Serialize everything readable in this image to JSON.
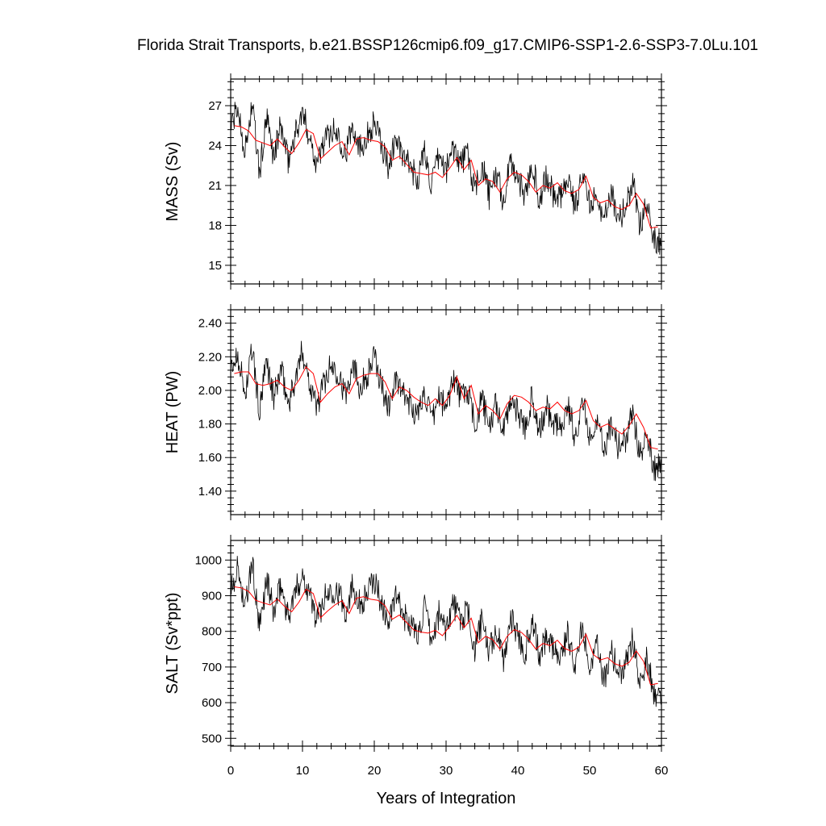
{
  "title": "Florida Strait Transports, b.e21.BSSP126cmip6.f09_g17.CMIP6-SSP1-2.6-SSP3-7.0Lu.101",
  "xlabel": "Years of Integration",
  "colors": {
    "raw": "#000000",
    "smooth": "#ff0000",
    "axis": "#000000"
  },
  "chart_data": [
    {
      "type": "line",
      "ylabel": "MASS (Sv)",
      "xlim": [
        0,
        60
      ],
      "ylim": [
        13.6,
        29
      ],
      "xticks": [
        0,
        10,
        20,
        30,
        40,
        50,
        60
      ],
      "yticks": [
        15,
        18,
        21,
        24,
        27
      ],
      "ytick_labels": [
        "15",
        "18",
        "21",
        "24",
        "27"
      ],
      "grid": false,
      "series": [
        {
          "style": "monthly-raw",
          "x": [
            0,
            1,
            2,
            3,
            4,
            5,
            6,
            7,
            8,
            9,
            10,
            11,
            12,
            13,
            14,
            15,
            16,
            17,
            18,
            19,
            20,
            21,
            22,
            23,
            24,
            25,
            26,
            27,
            28,
            29,
            30,
            31,
            32,
            33,
            34,
            35,
            36,
            37,
            38,
            39,
            40,
            41,
            42,
            43,
            44,
            45,
            46,
            47,
            48,
            49,
            50,
            51,
            52,
            53,
            54,
            55,
            56,
            57,
            58,
            59,
            60
          ],
          "values": [
            25.4,
            26.8,
            23.5,
            27.2,
            21.8,
            26.0,
            23.2,
            25.5,
            22.8,
            24.9,
            26.4,
            24.7,
            22.6,
            24.3,
            25.1,
            24.9,
            23.4,
            25.6,
            23.9,
            24.7,
            25.8,
            24.0,
            22.4,
            24.6,
            23.0,
            22.5,
            21.4,
            23.6,
            20.9,
            23.2,
            22.1,
            24.0,
            22.7,
            23.4,
            20.4,
            22.6,
            20.2,
            21.9,
            19.7,
            22.9,
            21.6,
            20.2,
            22.8,
            19.8,
            21.6,
            20.3,
            20.1,
            21.7,
            19.3,
            22.3,
            19.4,
            20.8,
            18.1,
            20.5,
            18.6,
            19.2,
            21.4,
            18.0,
            19.9,
            17.0,
            16.7
          ]
        },
        {
          "style": "annual-mean",
          "x": [
            0,
            1,
            2,
            3,
            4,
            5,
            6,
            7,
            8,
            9,
            10,
            11,
            12,
            13,
            14,
            15,
            16,
            17,
            18,
            19,
            20,
            21,
            22,
            23,
            24,
            25,
            26,
            27,
            28,
            29,
            30,
            31,
            32,
            33,
            34,
            35,
            36,
            37,
            38,
            39,
            40,
            41,
            42,
            43,
            44,
            45,
            46,
            47,
            48,
            49,
            50,
            51,
            52,
            53,
            54,
            55,
            56,
            57,
            58,
            59
          ],
          "values": [
            25.5,
            25.4,
            25.1,
            24.4,
            24.2,
            24.0,
            24.5,
            23.9,
            23.4,
            24.2,
            25.2,
            24.9,
            23.0,
            23.5,
            24.0,
            24.3,
            23.3,
            24.5,
            24.6,
            24.4,
            24.3,
            23.9,
            22.9,
            23.2,
            22.6,
            22.0,
            21.9,
            21.8,
            22.0,
            21.6,
            22.3,
            23.1,
            22.2,
            22.9,
            21.0,
            21.5,
            21.3,
            20.5,
            21.5,
            22.0,
            21.8,
            21.3,
            20.5,
            21.0,
            20.8,
            21.2,
            20.6,
            20.4,
            20.7,
            21.7,
            20.1,
            19.7,
            19.9,
            19.4,
            19.2,
            19.5,
            20.4,
            19.6,
            17.8,
            17.9
          ]
        }
      ]
    },
    {
      "type": "line",
      "ylabel": "HEAT (PW)",
      "xlim": [
        0,
        60
      ],
      "ylim": [
        1.26,
        2.48
      ],
      "xticks": [
        0,
        10,
        20,
        30,
        40,
        50,
        60
      ],
      "yticks": [
        1.4,
        1.6,
        1.8,
        2.0,
        2.2,
        2.4
      ],
      "ytick_labels": [
        "1.40",
        "1.60",
        "1.80",
        "2.00",
        "2.20",
        "2.40"
      ],
      "grid": false,
      "series": [
        {
          "style": "monthly-raw",
          "x": [
            0,
            1,
            2,
            3,
            4,
            5,
            6,
            7,
            8,
            9,
            10,
            11,
            12,
            13,
            14,
            15,
            16,
            17,
            18,
            19,
            20,
            21,
            22,
            23,
            24,
            25,
            26,
            27,
            28,
            29,
            30,
            31,
            32,
            33,
            34,
            35,
            36,
            37,
            38,
            39,
            40,
            41,
            42,
            43,
            44,
            45,
            46,
            47,
            48,
            49,
            50,
            51,
            52,
            53,
            54,
            55,
            56,
            57,
            58,
            59,
            60
          ],
          "values": [
            2.12,
            2.22,
            1.97,
            2.25,
            1.86,
            2.18,
            1.95,
            2.13,
            1.92,
            2.06,
            2.24,
            2.05,
            1.9,
            2.05,
            2.15,
            2.11,
            1.96,
            2.18,
            2.02,
            2.09,
            2.2,
            2.03,
            1.9,
            2.06,
            1.97,
            1.93,
            1.84,
            2.0,
            1.8,
            1.97,
            1.89,
            2.09,
            1.96,
            2.0,
            1.79,
            1.95,
            1.77,
            1.92,
            1.75,
            1.96,
            1.87,
            1.78,
            1.97,
            1.74,
            1.9,
            1.8,
            1.78,
            1.91,
            1.72,
            1.94,
            1.73,
            1.84,
            1.62,
            1.82,
            1.66,
            1.71,
            1.87,
            1.62,
            1.76,
            1.53,
            1.58
          ]
        },
        {
          "style": "annual-mean",
          "x": [
            0,
            1,
            2,
            3,
            4,
            5,
            6,
            7,
            8,
            9,
            10,
            11,
            12,
            13,
            14,
            15,
            16,
            17,
            18,
            19,
            20,
            21,
            22,
            23,
            24,
            25,
            26,
            27,
            28,
            29,
            30,
            31,
            32,
            33,
            34,
            35,
            36,
            37,
            38,
            39,
            40,
            41,
            42,
            43,
            44,
            45,
            46,
            47,
            48,
            49,
            50,
            51,
            52,
            53,
            54,
            55,
            56,
            57,
            58,
            59
          ],
          "values": [
            2.1,
            2.11,
            2.11,
            2.04,
            2.03,
            2.04,
            2.06,
            2.02,
            2.0,
            2.06,
            2.14,
            2.1,
            1.93,
            1.98,
            2.02,
            2.04,
            1.98,
            2.07,
            2.09,
            2.1,
            2.1,
            2.05,
            1.95,
            2.02,
            2.0,
            1.96,
            1.93,
            1.91,
            1.95,
            1.91,
            1.97,
            2.08,
            1.95,
            2.03,
            1.86,
            1.91,
            1.88,
            1.83,
            1.92,
            1.97,
            1.96,
            1.93,
            1.88,
            1.9,
            1.89,
            1.93,
            1.88,
            1.86,
            1.88,
            1.94,
            1.82,
            1.78,
            1.8,
            1.77,
            1.74,
            1.79,
            1.86,
            1.78,
            1.66,
            1.65
          ]
        }
      ]
    },
    {
      "type": "line",
      "ylabel": "SALT (Sv*ppt)",
      "xlim": [
        0,
        60
      ],
      "ylim": [
        478,
        1055
      ],
      "xticks": [
        0,
        10,
        20,
        30,
        40,
        50,
        60
      ],
      "yticks": [
        500,
        600,
        700,
        800,
        900,
        1000
      ],
      "ytick_labels": [
        "500",
        "600",
        "700",
        "800",
        "900",
        "1000"
      ],
      "grid": false,
      "series": [
        {
          "style": "monthly-raw",
          "x": [
            0,
            1,
            2,
            3,
            4,
            5,
            6,
            7,
            8,
            9,
            10,
            11,
            12,
            13,
            14,
            15,
            16,
            17,
            18,
            19,
            20,
            21,
            22,
            23,
            24,
            25,
            26,
            27,
            28,
            29,
            30,
            31,
            32,
            33,
            34,
            35,
            36,
            37,
            38,
            39,
            40,
            41,
            42,
            43,
            44,
            45,
            46,
            47,
            48,
            49,
            50,
            51,
            52,
            53,
            54,
            55,
            56,
            57,
            58,
            59,
            60
          ],
          "values": [
            920,
            980,
            860,
            995,
            800,
            950,
            850,
            930,
            840,
            910,
            960,
            905,
            830,
            890,
            920,
            910,
            855,
            935,
            875,
            905,
            945,
            880,
            820,
            900,
            845,
            825,
            785,
            865,
            765,
            850,
            810,
            880,
            830,
            855,
            750,
            830,
            740,
            805,
            720,
            840,
            790,
            740,
            835,
            725,
            790,
            745,
            735,
            795,
            705,
            815,
            710,
            760,
            660,
            750,
            680,
            705,
            785,
            660,
            730,
            620,
            615
          ]
        },
        {
          "style": "annual-mean",
          "x": [
            0,
            1,
            2,
            3,
            4,
            5,
            6,
            7,
            8,
            9,
            10,
            11,
            12,
            13,
            14,
            15,
            16,
            17,
            18,
            19,
            20,
            21,
            22,
            23,
            24,
            25,
            26,
            27,
            28,
            29,
            30,
            31,
            32,
            33,
            34,
            35,
            36,
            37,
            38,
            39,
            40,
            41,
            42,
            43,
            44,
            45,
            46,
            47,
            48,
            49,
            50,
            51,
            52,
            53,
            54,
            55,
            56,
            57,
            58,
            59
          ],
          "values": [
            925,
            922,
            912,
            887,
            880,
            874,
            891,
            870,
            855,
            882,
            918,
            906,
            838,
            857,
            874,
            886,
            850,
            893,
            897,
            890,
            887,
            872,
            834,
            846,
            825,
            804,
            798,
            795,
            803,
            788,
            815,
            845,
            810,
            837,
            768,
            786,
            777,
            750,
            786,
            805,
            797,
            778,
            750,
            766,
            760,
            775,
            752,
            744,
            756,
            792,
            735,
            720,
            726,
            709,
            702,
            713,
            745,
            716,
            650,
            654
          ]
        }
      ]
    }
  ]
}
